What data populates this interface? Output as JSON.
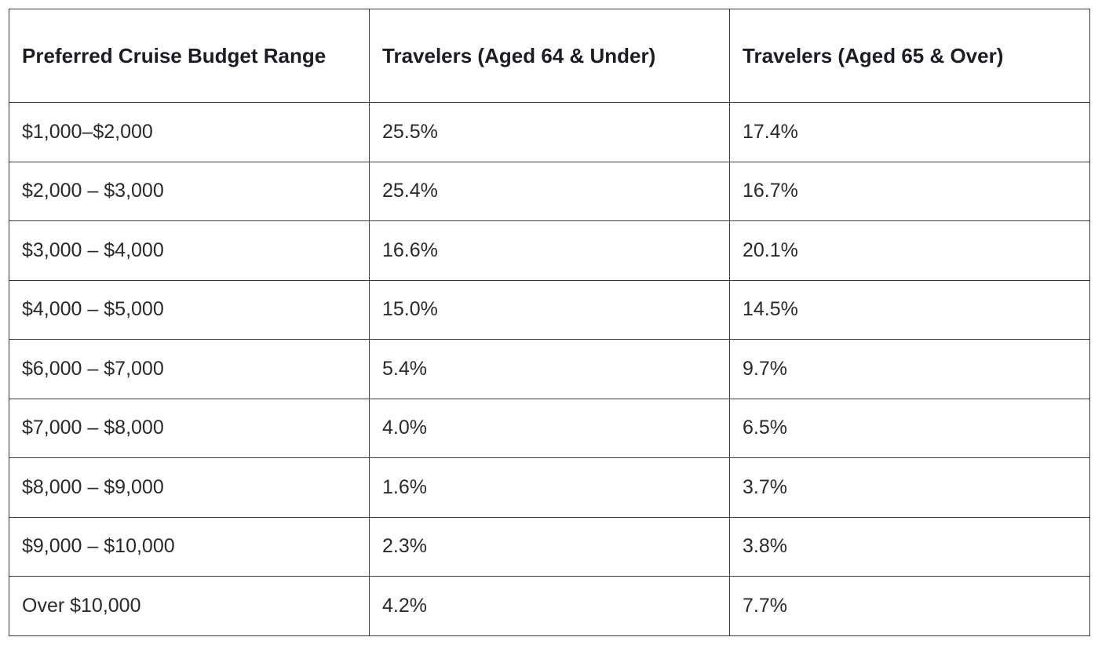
{
  "table": {
    "headers": [
      "Preferred Cruise Budget Range",
      "Travelers (Aged 64 & Under)",
      "Travelers (Aged 65 & Over)"
    ],
    "rows": [
      [
        "$1,000–$2,000",
        "25.5%",
        "17.4%"
      ],
      [
        "$2,000 – $3,000",
        "25.4%",
        "16.7%"
      ],
      [
        "$3,000 – $4,000",
        "16.6%",
        "20.1%"
      ],
      [
        "$4,000 – $5,000",
        "15.0%",
        "14.5%"
      ],
      [
        "$6,000 – $7,000",
        "5.4%",
        "9.7%"
      ],
      [
        "$7,000 – $8,000",
        "4.0%",
        "6.5%"
      ],
      [
        "$8,000 – $9,000",
        "1.6%",
        "3.7%"
      ],
      [
        "$9,000 – $10,000",
        "2.3%",
        "3.8%"
      ],
      [
        "Over $10,000",
        "4.2%",
        "7.7%"
      ]
    ]
  }
}
